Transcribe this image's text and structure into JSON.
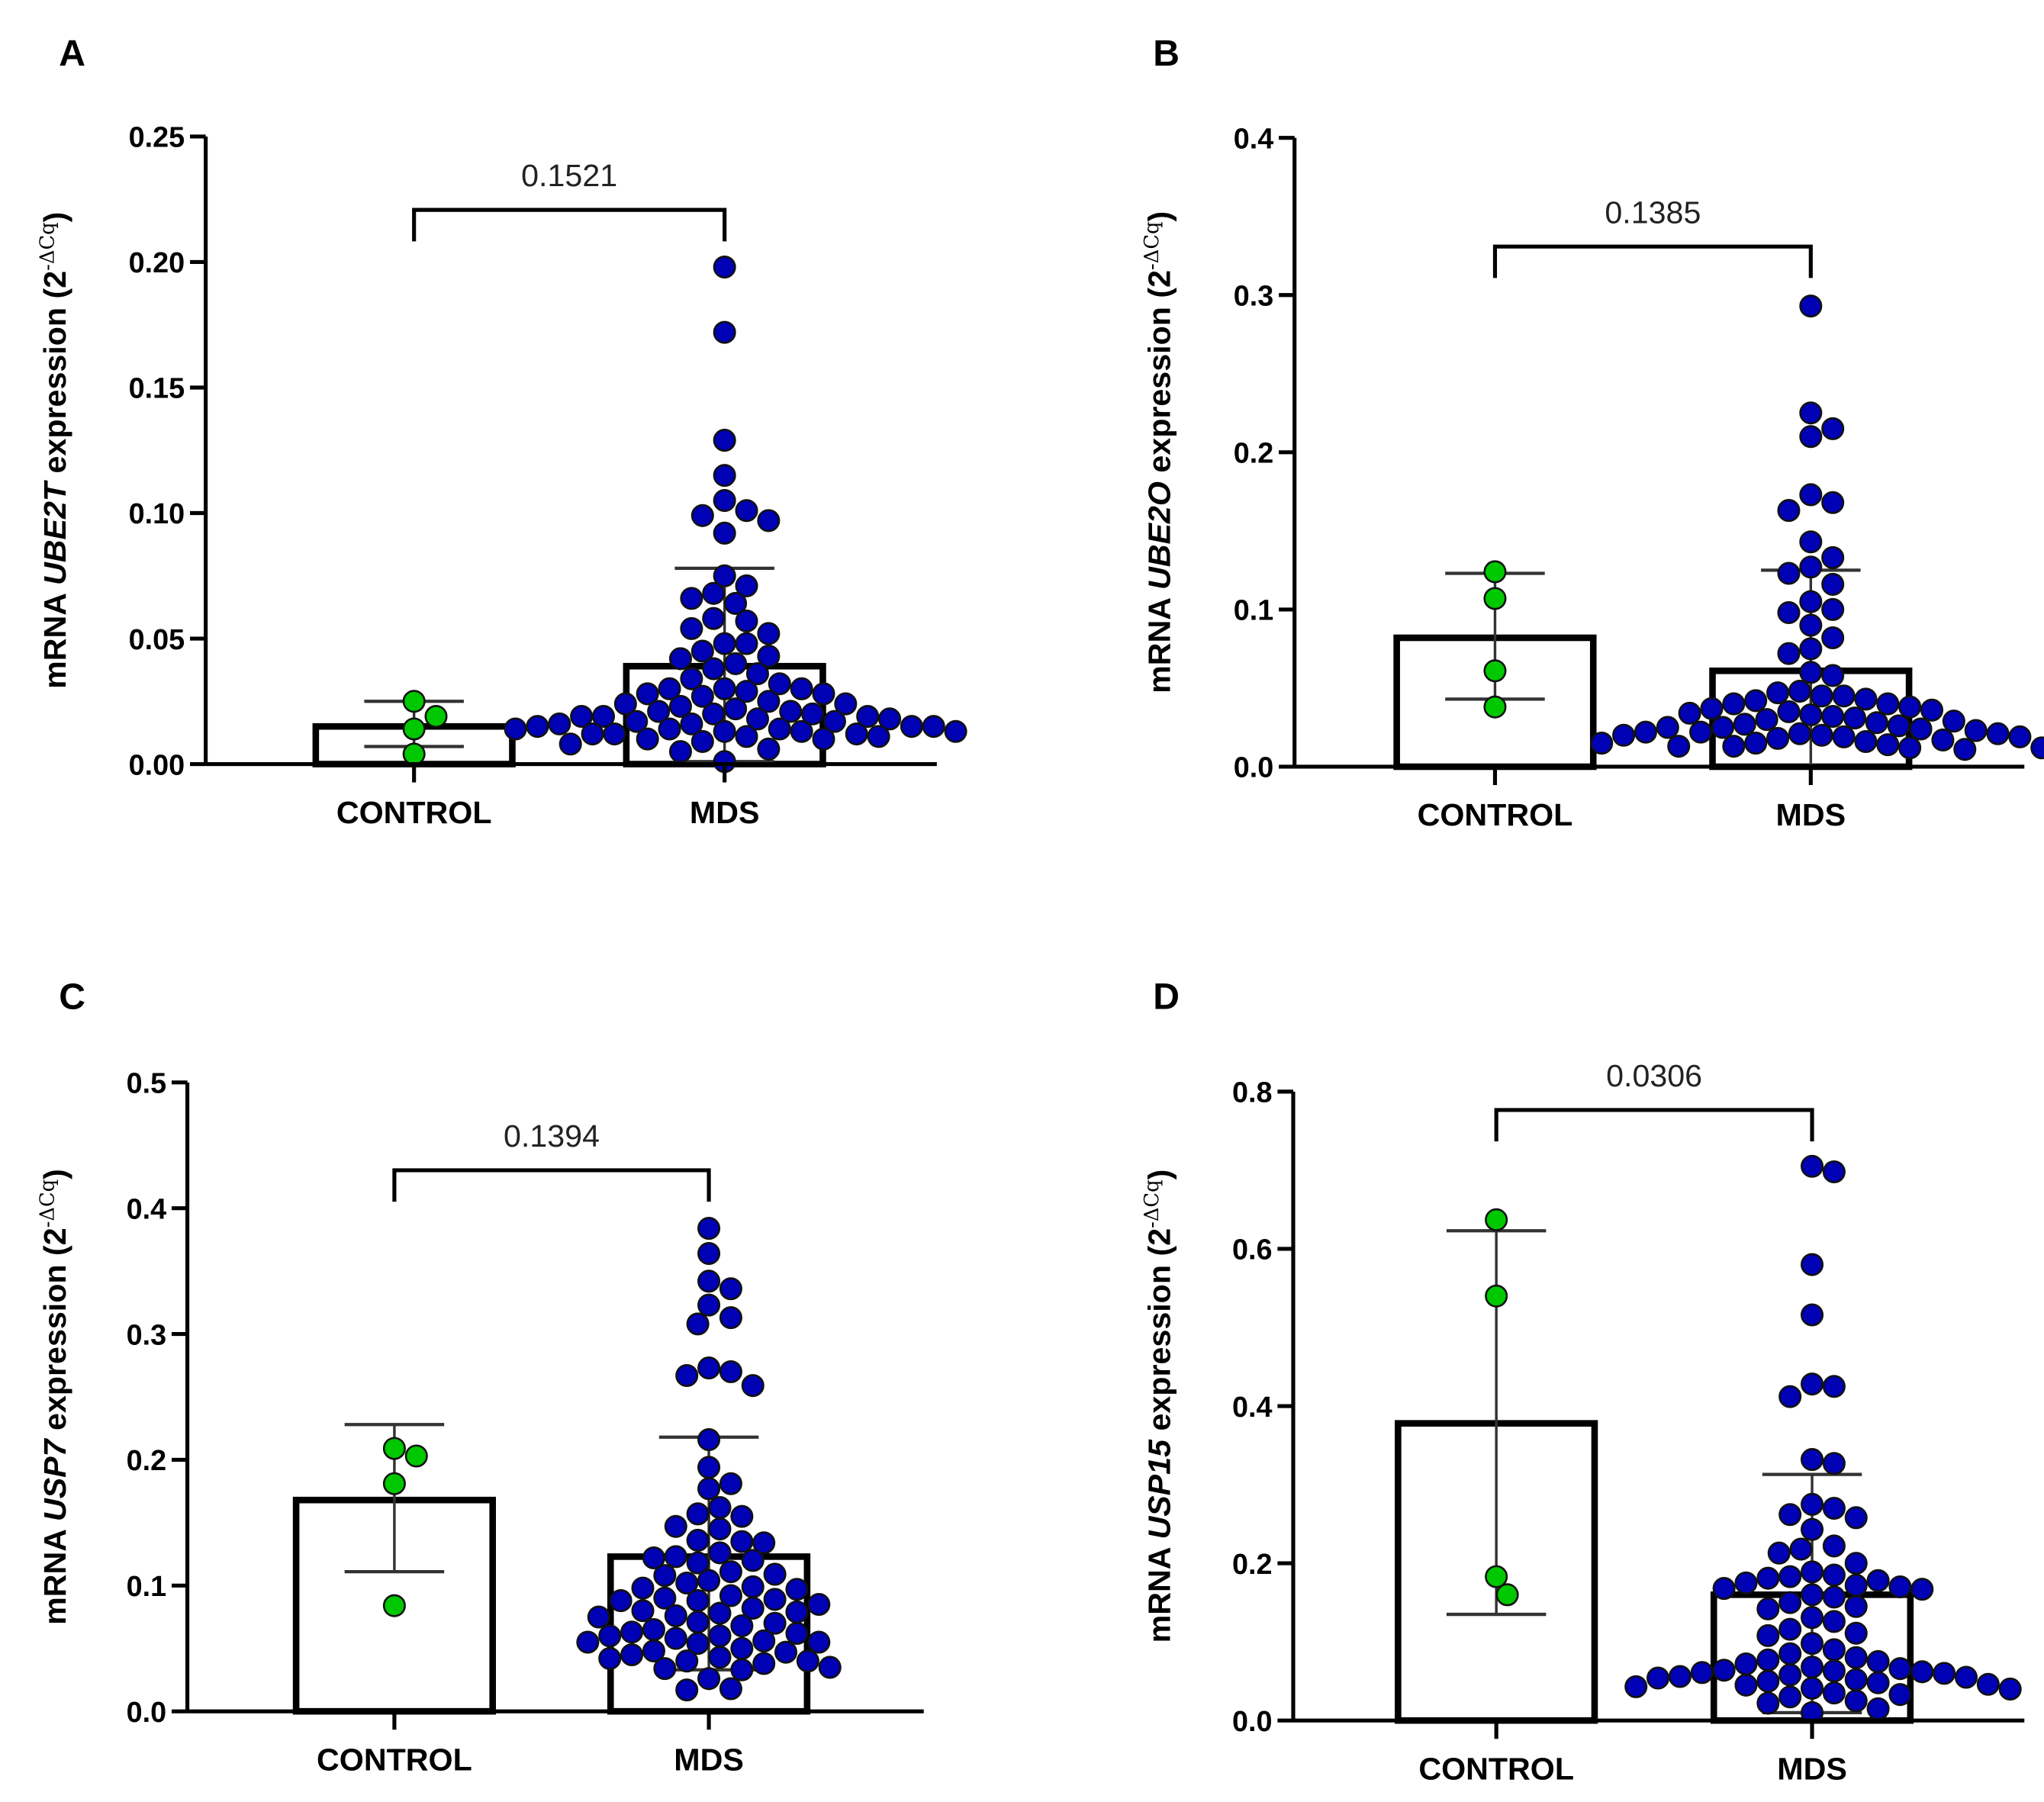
{
  "chart_data": [
    {
      "type": "bar",
      "panel": "A",
      "gene": "UBE2T",
      "ylabel_prefix": "mRNA ",
      "ylabel_suffix": " expression (2",
      "ylabel_sup": "-ΔCq",
      "ylabel_close": ")",
      "ylim": [
        0,
        0.25
      ],
      "yticks": [
        "0.00",
        "0.05",
        "0.10",
        "0.15",
        "0.20",
        "0.25"
      ],
      "categories": [
        "CONTROL",
        "MDS"
      ],
      "p_value": "0.1521",
      "series": [
        {
          "name": "CONTROL",
          "color": "#00c800",
          "mean": 0.015,
          "err_low": 0.007,
          "err_high": 0.025,
          "points": [
            0.025,
            0.019,
            0.014,
            0.004
          ]
        },
        {
          "name": "MDS",
          "color": "#0000b4",
          "mean": 0.039,
          "err_low": 0.001,
          "err_high": 0.078,
          "points": [
            0.198,
            0.172,
            0.129,
            0.115,
            0.105,
            0.101,
            0.099,
            0.097,
            0.092,
            0.075,
            0.071,
            0.068,
            0.066,
            0.064,
            0.058,
            0.057,
            0.054,
            0.052,
            0.048,
            0.048,
            0.045,
            0.043,
            0.042,
            0.04,
            0.038,
            0.036,
            0.034,
            0.032,
            0.03,
            0.03,
            0.03,
            0.029,
            0.028,
            0.028,
            0.027,
            0.025,
            0.024,
            0.024,
            0.023,
            0.022,
            0.021,
            0.021,
            0.02,
            0.02,
            0.019,
            0.019,
            0.019,
            0.018,
            0.018,
            0.017,
            0.017,
            0.016,
            0.016,
            0.015,
            0.015,
            0.015,
            0.014,
            0.014,
            0.014,
            0.013,
            0.013,
            0.013,
            0.012,
            0.012,
            0.012,
            0.011,
            0.011,
            0.01,
            0.01,
            0.009,
            0.008,
            0.006,
            0.005,
            0.001
          ]
        }
      ]
    },
    {
      "type": "bar",
      "panel": "B",
      "gene": "UBE2O",
      "ylabel_prefix": "mRNA ",
      "ylabel_suffix": " expression (2",
      "ylabel_sup": "-ΔCq",
      "ylabel_close": ")",
      "ylim": [
        0,
        0.4
      ],
      "yticks": [
        "0.0",
        "0.1",
        "0.2",
        "0.3",
        "0.4"
      ],
      "categories": [
        "CONTROL",
        "MDS"
      ],
      "p_value": "0.1385",
      "series": [
        {
          "name": "CONTROL",
          "color": "#00c800",
          "mean": 0.082,
          "err_low": 0.043,
          "err_high": 0.123,
          "points": [
            0.124,
            0.107,
            0.061,
            0.038
          ]
        },
        {
          "name": "MDS",
          "color": "#0000b4",
          "mean": 0.061,
          "err_low": 0.0,
          "err_high": 0.125,
          "points": [
            0.293,
            0.225,
            0.215,
            0.21,
            0.173,
            0.168,
            0.163,
            0.143,
            0.133,
            0.127,
            0.123,
            0.116,
            0.105,
            0.1,
            0.098,
            0.09,
            0.082,
            0.075,
            0.072,
            0.06,
            0.058,
            0.048,
            0.047,
            0.045,
            0.045,
            0.043,
            0.042,
            0.04,
            0.04,
            0.038,
            0.037,
            0.036,
            0.035,
            0.034,
            0.033,
            0.032,
            0.031,
            0.03,
            0.029,
            0.028,
            0.027,
            0.026,
            0.025,
            0.025,
            0.024,
            0.023,
            0.022,
            0.022,
            0.021,
            0.021,
            0.02,
            0.02,
            0.019,
            0.019,
            0.018,
            0.017,
            0.016,
            0.015,
            0.015,
            0.014,
            0.013,
            0.013,
            0.012,
            0.012,
            0.011
          ]
        }
      ]
    },
    {
      "type": "bar",
      "panel": "C",
      "gene": "USP7",
      "ylabel_prefix": "mRNA ",
      "ylabel_suffix": " expression (2",
      "ylabel_sup": "-ΔCq",
      "ylabel_close": ")",
      "ylim": [
        0,
        0.5
      ],
      "yticks": [
        "0.0",
        "0.1",
        "0.2",
        "0.3",
        "0.4",
        "0.5"
      ],
      "categories": [
        "CONTROL",
        "MDS"
      ],
      "p_value": "0.1394",
      "series": [
        {
          "name": "CONTROL",
          "color": "#00c800",
          "mean": 0.168,
          "err_low": 0.111,
          "err_high": 0.228,
          "points": [
            0.209,
            0.203,
            0.181,
            0.084
          ]
        },
        {
          "name": "MDS",
          "color": "#0000b4",
          "mean": 0.123,
          "err_low": 0.033,
          "err_high": 0.218,
          "points": [
            0.384,
            0.364,
            0.342,
            0.336,
            0.323,
            0.313,
            0.308,
            0.273,
            0.27,
            0.267,
            0.259,
            0.216,
            0.194,
            0.181,
            0.177,
            0.162,
            0.157,
            0.155,
            0.147,
            0.145,
            0.136,
            0.135,
            0.134,
            0.126,
            0.123,
            0.122,
            0.12,
            0.118,
            0.111,
            0.109,
            0.108,
            0.104,
            0.102,
            0.099,
            0.098,
            0.097,
            0.092,
            0.09,
            0.089,
            0.088,
            0.088,
            0.085,
            0.082,
            0.08,
            0.079,
            0.078,
            0.076,
            0.075,
            0.071,
            0.07,
            0.068,
            0.065,
            0.063,
            0.062,
            0.06,
            0.06,
            0.058,
            0.056,
            0.055,
            0.055,
            0.054,
            0.05,
            0.048,
            0.047,
            0.045,
            0.043,
            0.042,
            0.04,
            0.04,
            0.038,
            0.035,
            0.034,
            0.033,
            0.026,
            0.018,
            0.017
          ]
        }
      ]
    },
    {
      "type": "bar",
      "panel": "D",
      "gene": "USP15",
      "ylabel_prefix": "mRNA ",
      "ylabel_suffix": " expression (2",
      "ylabel_sup": "-ΔCq",
      "ylabel_close": ")",
      "ylim": [
        0,
        0.8
      ],
      "yticks": [
        "0.0",
        "0.2",
        "0.4",
        "0.6",
        "0.8"
      ],
      "categories": [
        "CONTROL",
        "MDS"
      ],
      "p_value": "0.0306",
      "series": [
        {
          "name": "CONTROL",
          "color": "#00c800",
          "mean": 0.378,
          "err_low": 0.135,
          "err_high": 0.623,
          "points": [
            0.637,
            0.54,
            0.183,
            0.16
          ]
        },
        {
          "name": "MDS",
          "color": "#0000b4",
          "mean": 0.16,
          "err_low": 0.01,
          "err_high": 0.313,
          "points": [
            0.705,
            0.698,
            0.58,
            0.516,
            0.428,
            0.425,
            0.412,
            0.332,
            0.327,
            0.275,
            0.27,
            0.262,
            0.258,
            0.243,
            0.222,
            0.218,
            0.213,
            0.2,
            0.189,
            0.185,
            0.183,
            0.181,
            0.178,
            0.175,
            0.172,
            0.17,
            0.168,
            0.167,
            0.16,
            0.157,
            0.15,
            0.145,
            0.142,
            0.131,
            0.126,
            0.116,
            0.111,
            0.108,
            0.098,
            0.09,
            0.085,
            0.08,
            0.077,
            0.075,
            0.072,
            0.068,
            0.066,
            0.064,
            0.063,
            0.062,
            0.061,
            0.06,
            0.058,
            0.056,
            0.055,
            0.054,
            0.052,
            0.05,
            0.048,
            0.046,
            0.045,
            0.043,
            0.041,
            0.04,
            0.035,
            0.033,
            0.03,
            0.025,
            0.022,
            0.015,
            0.01
          ]
        }
      ]
    }
  ]
}
